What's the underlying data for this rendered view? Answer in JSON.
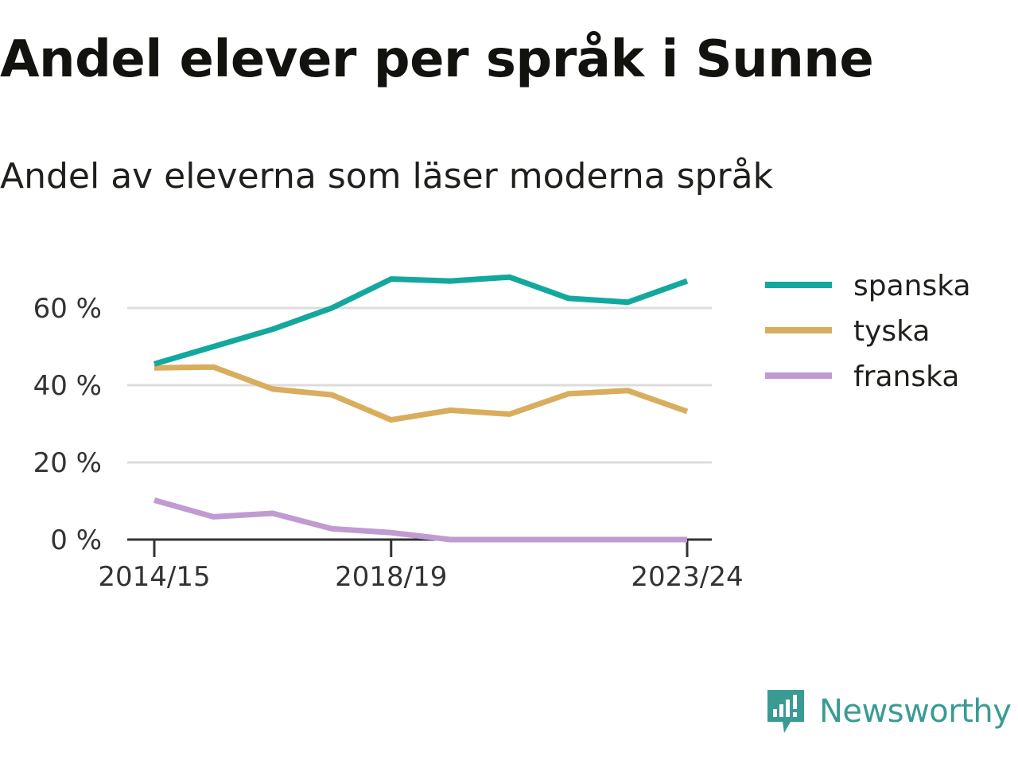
{
  "title": "Andel elever per språk i Sunne",
  "subtitle": "Andel av eleverna som läser moderna språk",
  "brand": {
    "name": "Newsworthy",
    "logo_icon": "newsworthy-logo-icon",
    "color": "#3a9b94"
  },
  "chart_data": {
    "type": "line",
    "title": "Andel elever per språk i Sunne",
    "subtitle": "Andel av eleverna som läser moderna språk",
    "x": [
      "2014/15",
      "2015/16",
      "2016/17",
      "2017/18",
      "2018/19",
      "2019/20",
      "2020/21",
      "2021/22",
      "2022/23",
      "2023/24"
    ],
    "x_tick_labels": [
      "2014/15",
      "2018/19",
      "2023/24"
    ],
    "y_ticks": [
      0,
      20,
      40,
      60
    ],
    "y_tick_labels": [
      "0 %",
      "20 %",
      "40 %",
      "60 %"
    ],
    "ylim": [
      0,
      72
    ],
    "grid": true,
    "legend_position": "right",
    "series": [
      {
        "name": "spanska",
        "color": "#13a89e",
        "values": [
          45.5,
          50,
          54.5,
          60,
          67.5,
          67,
          68,
          62.5,
          61.5,
          67
        ]
      },
      {
        "name": "tyska",
        "color": "#d9ad5e",
        "values": [
          44.5,
          44.7,
          39,
          37.5,
          31,
          33.5,
          32.5,
          37.8,
          38.6,
          33.2
        ]
      },
      {
        "name": "franska",
        "color": "#c29ad2",
        "values": [
          10.2,
          5.9,
          6.8,
          2.8,
          1.8,
          0,
          0,
          0,
          0,
          0
        ]
      }
    ]
  }
}
